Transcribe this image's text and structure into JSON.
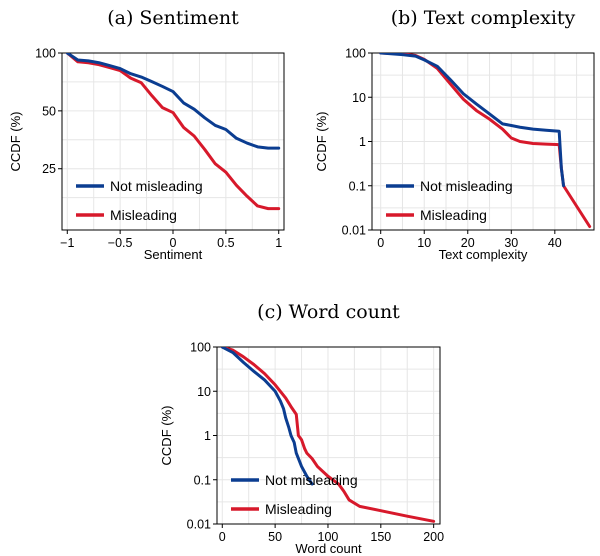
{
  "chart_data": [
    {
      "type": "line",
      "title": "(a) Sentiment",
      "xlabel": "Sentiment",
      "ylabel": "CCDF (%)",
      "yscale": "log",
      "xlim": [
        -1.05,
        1.05
      ],
      "ylim": [
        12,
        100
      ],
      "xticks": [
        -1,
        -0.5,
        0,
        0.5,
        1
      ],
      "xtick_labels": [
        "−1",
        "−0.5",
        "0",
        "0.5",
        "1"
      ],
      "yticks": [
        25,
        50,
        100
      ],
      "ytick_labels": [
        "25",
        "50",
        "100"
      ],
      "grid": true,
      "legend": "bottom-left",
      "series": [
        {
          "name": "Not misleading",
          "color": "#0b3d91",
          "x": [
            -1,
            -0.9,
            -0.8,
            -0.7,
            -0.6,
            -0.5,
            -0.4,
            -0.3,
            -0.2,
            -0.1,
            0,
            0.1,
            0.2,
            0.3,
            0.4,
            0.5,
            0.6,
            0.7,
            0.8,
            0.9,
            1
          ],
          "y": [
            100,
            92,
            91,
            89,
            86,
            83,
            78,
            75,
            71,
            67,
            63,
            55,
            51,
            46,
            42,
            40,
            36,
            34,
            32.5,
            32,
            32
          ]
        },
        {
          "name": "Misleading",
          "color": "#d7192b",
          "x": [
            -1,
            -0.9,
            -0.8,
            -0.7,
            -0.6,
            -0.5,
            -0.4,
            -0.3,
            -0.2,
            -0.1,
            0,
            0.1,
            0.2,
            0.3,
            0.4,
            0.5,
            0.6,
            0.7,
            0.8,
            0.9,
            1
          ],
          "y": [
            100,
            90,
            89,
            87,
            84,
            81,
            74,
            70,
            60,
            52,
            49,
            41,
            37,
            31.5,
            26.5,
            24,
            20.5,
            18,
            16,
            15.5,
            15.5
          ]
        }
      ]
    },
    {
      "type": "line",
      "title": "(b) Text complexity",
      "xlabel": "Text complexity",
      "ylabel": "CCDF (%)",
      "yscale": "log",
      "xlim": [
        -2,
        49
      ],
      "ylim": [
        0.01,
        100
      ],
      "xticks": [
        0,
        10,
        20,
        30,
        40
      ],
      "xtick_labels": [
        "0",
        "10",
        "20",
        "30",
        "40"
      ],
      "yticks": [
        0.01,
        0.1,
        1,
        10,
        100
      ],
      "ytick_labels": [
        "0.01",
        "0.1",
        "1",
        "10",
        "100"
      ],
      "grid": true,
      "legend": "bottom-left",
      "series": [
        {
          "name": "Not misleading",
          "color": "#0b3d91",
          "x": [
            0,
            5,
            8,
            10,
            13,
            16,
            19,
            22,
            25,
            28,
            30,
            32,
            35,
            38,
            41,
            41.5,
            42
          ],
          "y": [
            100,
            92,
            85,
            70,
            50,
            25,
            12,
            7,
            4.2,
            2.5,
            2.3,
            2.1,
            1.9,
            1.8,
            1.7,
            0.25,
            0.1
          ]
        },
        {
          "name": "Misleading",
          "color": "#d7192b",
          "x": [
            0,
            5,
            8,
            10,
            13,
            16,
            19,
            22,
            25,
            28,
            30,
            32,
            35,
            38,
            41,
            41.5,
            42,
            48
          ],
          "y": [
            100,
            96,
            88,
            72,
            45,
            20,
            9,
            5,
            3.2,
            1.9,
            1.2,
            1.0,
            0.9,
            0.87,
            0.85,
            0.25,
            0.1,
            0.012
          ]
        }
      ]
    },
    {
      "type": "line",
      "title": "(c) Word count",
      "xlabel": "Word count",
      "ylabel": "CCDF (%)",
      "yscale": "log",
      "xlim": [
        -5,
        206
      ],
      "ylim": [
        0.01,
        100
      ],
      "xticks": [
        0,
        50,
        100,
        150,
        200
      ],
      "xtick_labels": [
        "0",
        "50",
        "100",
        "150",
        "200"
      ],
      "yticks": [
        0.01,
        0.1,
        1,
        10,
        100
      ],
      "ytick_labels": [
        "0.01",
        "0.1",
        "1",
        "10",
        "100"
      ],
      "grid": true,
      "legend": "bottom-left",
      "series": [
        {
          "name": "Not misleading",
          "color": "#0b3d91",
          "x": [
            0,
            10,
            20,
            30,
            40,
            50,
            55,
            58,
            60,
            63,
            65,
            68,
            70,
            75,
            80,
            85
          ],
          "y": [
            100,
            75,
            45,
            28,
            18,
            10,
            6,
            4,
            2.5,
            1.5,
            1.0,
            0.7,
            0.4,
            0.2,
            0.12,
            0.08
          ]
        },
        {
          "name": "Misleading",
          "color": "#d7192b",
          "x": [
            0,
            10,
            20,
            30,
            40,
            50,
            60,
            65,
            70,
            72,
            75,
            78,
            80,
            85,
            90,
            100,
            110,
            115,
            120,
            130,
            150,
            175,
            200
          ],
          "y": [
            100,
            85,
            60,
            40,
            25,
            14,
            7,
            4.5,
            3,
            1.0,
            0.8,
            0.5,
            0.4,
            0.3,
            0.2,
            0.12,
            0.08,
            0.055,
            0.035,
            0.025,
            0.02,
            0.015,
            0.0115
          ]
        }
      ]
    }
  ]
}
